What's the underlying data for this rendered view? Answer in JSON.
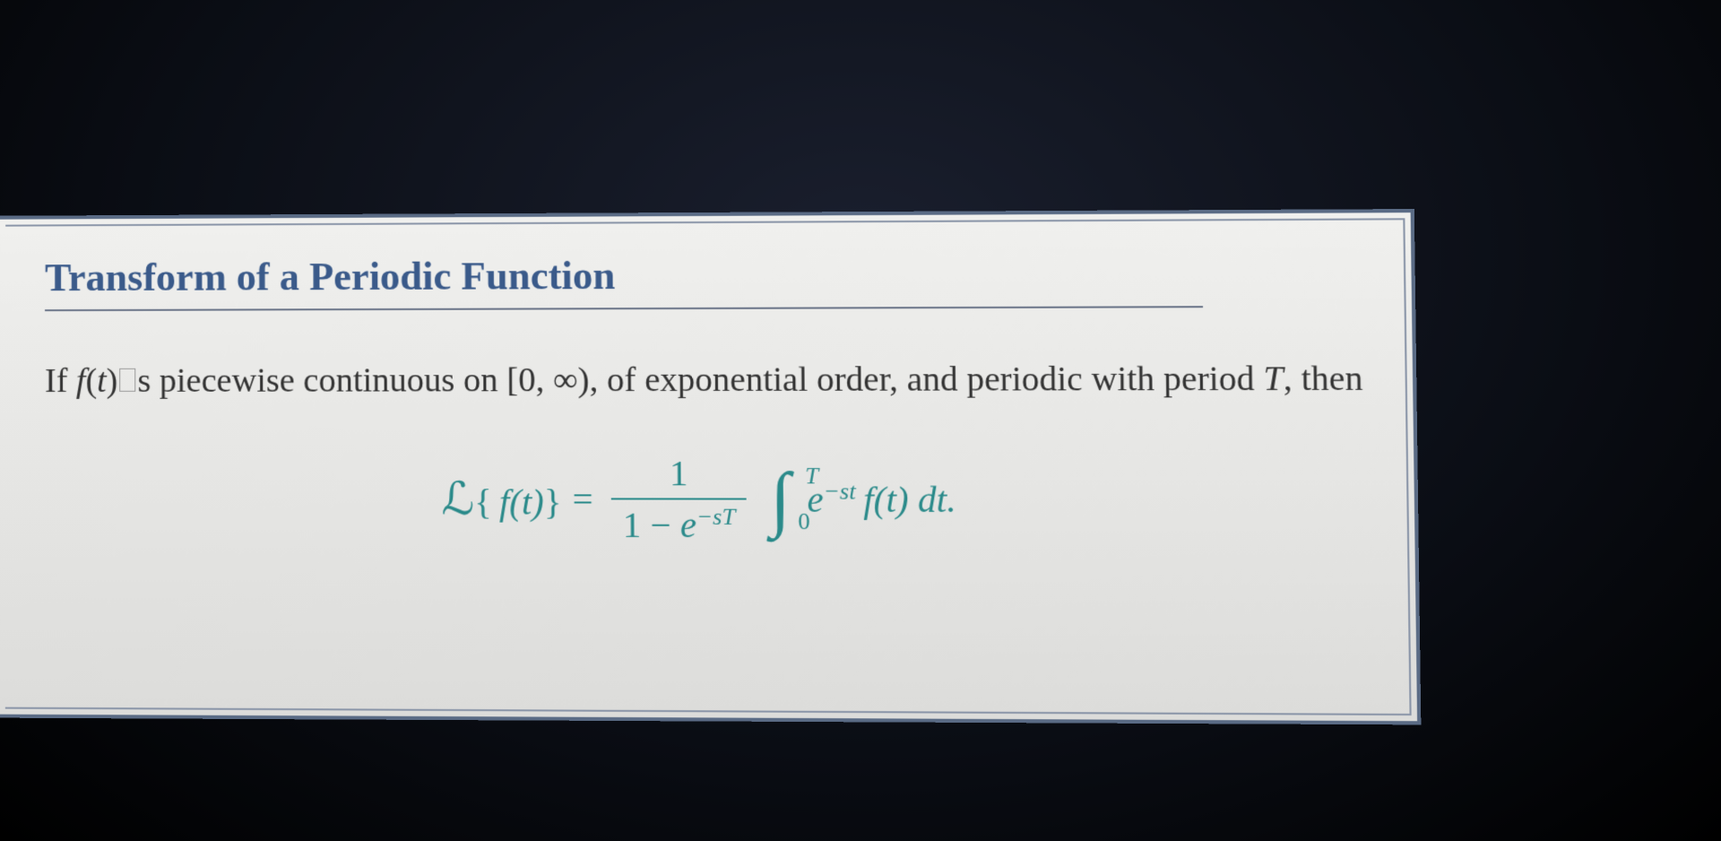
{
  "theorem": {
    "title": "Transform of a Periodic Function",
    "condition_prefix": "If ",
    "condition_func": "f",
    "condition_func_arg": "t",
    "condition_mid": "s piecewise continuous on [0, ∞), of exponential order, and periodic with period ",
    "condition_period": "T",
    "condition_suffix": ", then",
    "formula": {
      "lhs_operator": "ℒ",
      "lhs_open": "{",
      "lhs_func": "f",
      "lhs_arg": "t",
      "lhs_close": "}",
      "equals": " = ",
      "frac_num": "1",
      "frac_den_prefix": "1 − ",
      "frac_den_e": "e",
      "frac_den_exp": "−sT",
      "int_upper": "T",
      "int_lower": "0",
      "integrand_e": "e",
      "integrand_exp": "−st",
      "integrand_func": "f",
      "integrand_arg": "t",
      "integrand_dt": " dt.",
      "color": "#2a8a8a",
      "title_color": "#3a5a8a"
    }
  },
  "style": {
    "box_border_color": "#5a6b85",
    "box_bg": "#e8e8e6",
    "text_color": "#333333",
    "title_fontsize": 44,
    "body_fontsize": 38,
    "formula_fontsize": 40
  }
}
